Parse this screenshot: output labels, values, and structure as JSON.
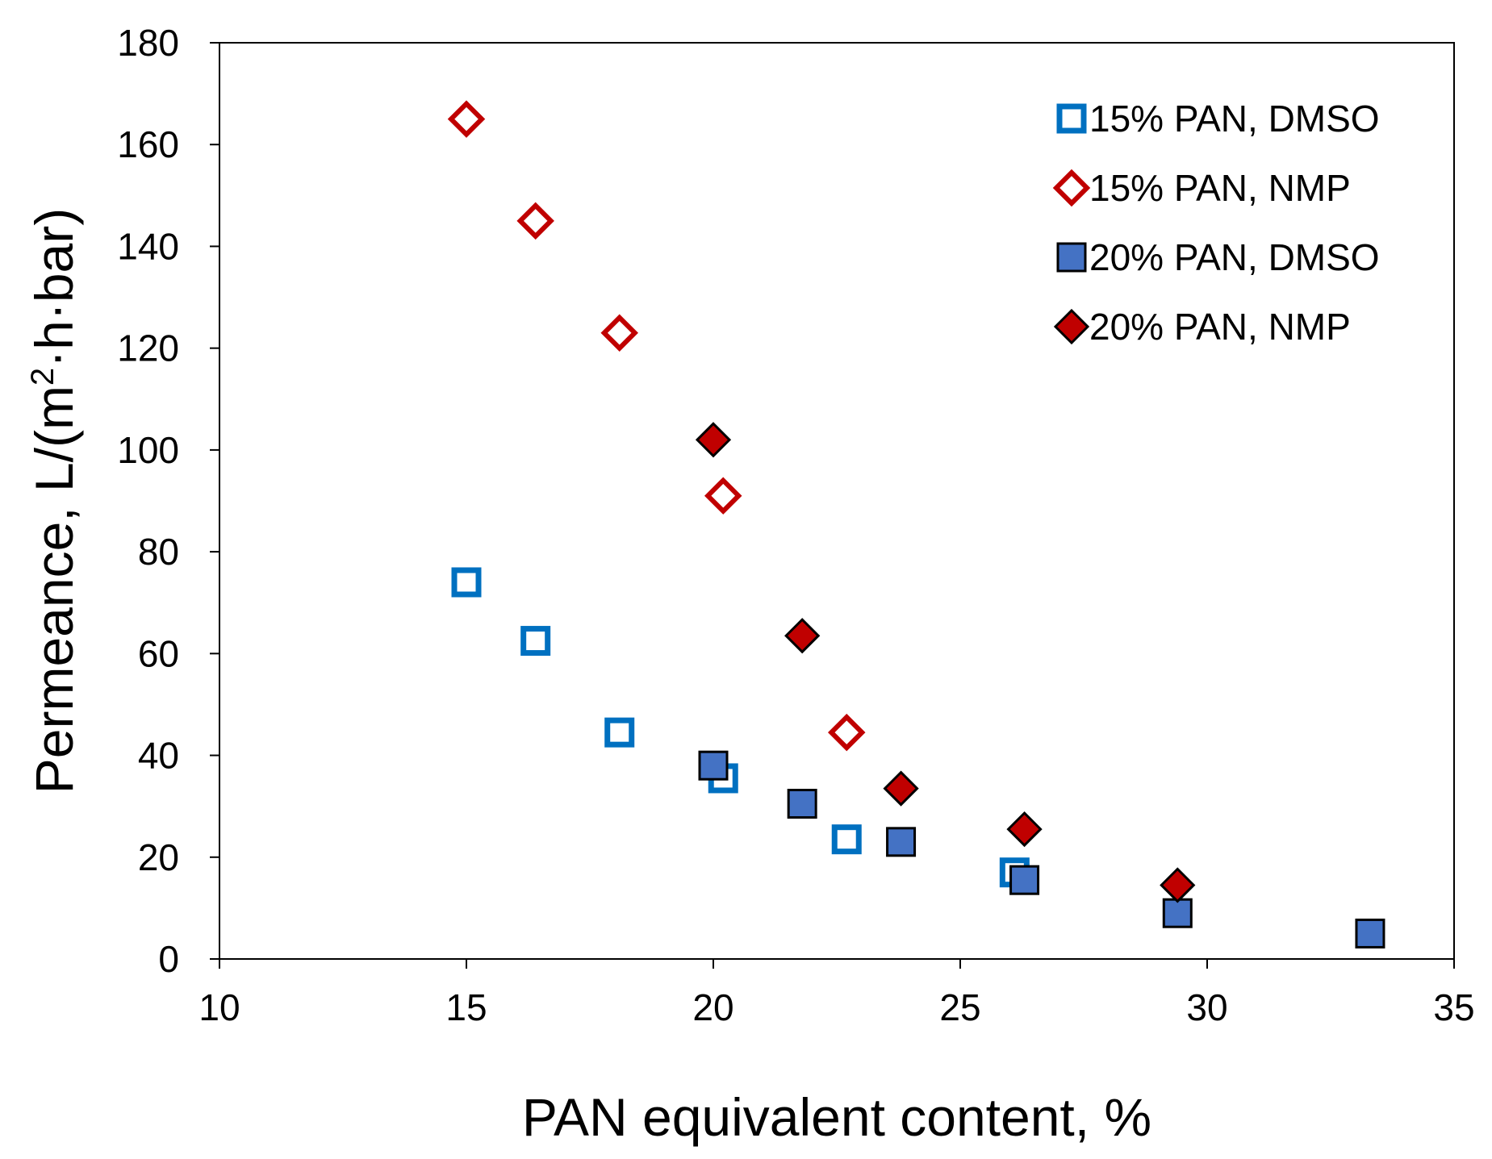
{
  "chart_data": {
    "type": "scatter",
    "title": "",
    "xlabel": "PAN equivalent content, %",
    "ylabel_prefix": "Permeance,  L/(m",
    "ylabel_sup": "2",
    "ylabel_suffix": "·h·bar)",
    "xlim": [
      10,
      35
    ],
    "ylim": [
      0,
      180
    ],
    "xticks": [
      10,
      15,
      20,
      25,
      30,
      35
    ],
    "yticks": [
      0,
      20,
      40,
      60,
      80,
      100,
      120,
      140,
      160,
      180
    ],
    "grid": false,
    "legend_position": "top-right",
    "series": [
      {
        "name": "15% PAN, DMSO",
        "marker": "square-open",
        "color": "#0070C0",
        "points": [
          [
            15.0,
            74
          ],
          [
            16.4,
            62.5
          ],
          [
            18.1,
            44.5
          ],
          [
            20.2,
            35.5
          ],
          [
            22.7,
            23.5
          ],
          [
            26.1,
            17
          ]
        ]
      },
      {
        "name": "15% PAN, NMP",
        "marker": "diamond-open",
        "color": "#C00000",
        "points": [
          [
            15.0,
            165
          ],
          [
            16.4,
            145
          ],
          [
            18.1,
            123
          ],
          [
            20.2,
            91
          ],
          [
            22.7,
            44.5
          ]
        ]
      },
      {
        "name": "20% PAN, DMSO",
        "marker": "square-filled",
        "color": "#4472C4",
        "points": [
          [
            20.0,
            38
          ],
          [
            21.8,
            30.5
          ],
          [
            23.8,
            23
          ],
          [
            26.3,
            15.5
          ],
          [
            29.4,
            9
          ],
          [
            33.3,
            5
          ]
        ]
      },
      {
        "name": "20% PAN, NMP",
        "marker": "diamond-filled",
        "color": "#C00000",
        "points": [
          [
            20.0,
            102
          ],
          [
            21.8,
            63.5
          ],
          [
            23.8,
            33.5
          ],
          [
            26.3,
            25.5
          ],
          [
            29.4,
            14.5
          ]
        ]
      }
    ]
  }
}
